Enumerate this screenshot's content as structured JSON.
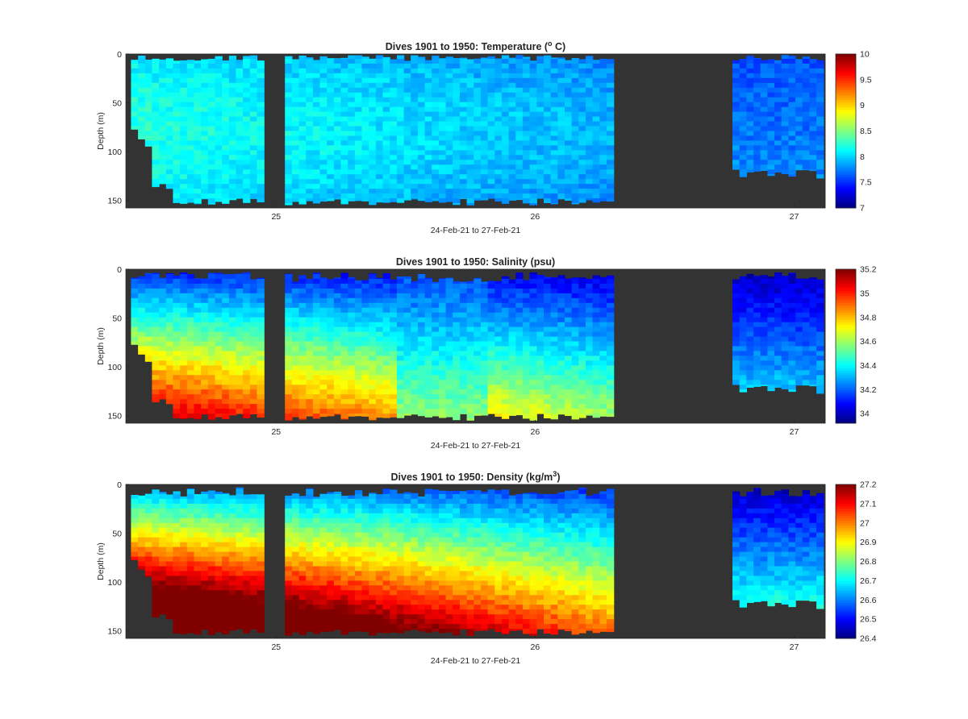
{
  "figure": {
    "background": "#ffffff",
    "no_data_color": "#333333",
    "colormap": "jet"
  },
  "chart_data": [
    {
      "type": "heatmap",
      "title": "Dives 1901 to 1950: Temperature (",
      "title_sup": "o",
      "title_tail": " C)",
      "xlabel": "24-Feb-21 to 27-Feb-21",
      "ylabel": "Depth (m)",
      "x_ticks": [
        25,
        26,
        27
      ],
      "x_ticklabels": [
        "25",
        "26",
        "27"
      ],
      "xlim": [
        24.42,
        27.12
      ],
      "ylim": [
        0,
        158
      ],
      "y_ticks": [
        0,
        50,
        100,
        150
      ],
      "y_ticklabels": [
        "0",
        "50",
        "100",
        "150"
      ],
      "y_reversed": true,
      "clim": [
        7,
        10
      ],
      "c_ticks": [
        7,
        7.5,
        8,
        8.5,
        9,
        9.5,
        10
      ],
      "c_ticklabels": [
        "7",
        "7.5",
        "8",
        "8.5",
        "9",
        "9.5",
        "10"
      ],
      "data_gaps": [
        [
          24.96,
          25.01
        ],
        [
          26.31,
          26.74
        ]
      ]
    },
    {
      "type": "heatmap",
      "title": "Dives 1901 to 1950: Salinity (psu)",
      "title_sup": "",
      "title_tail": "",
      "xlabel": "24-Feb-21 to 27-Feb-21",
      "ylabel": "Depth (m)",
      "x_ticks": [
        25,
        26,
        27
      ],
      "x_ticklabels": [
        "25",
        "26",
        "27"
      ],
      "xlim": [
        24.42,
        27.12
      ],
      "ylim": [
        0,
        158
      ],
      "y_ticks": [
        0,
        50,
        100,
        150
      ],
      "y_ticklabels": [
        "0",
        "50",
        "100",
        "150"
      ],
      "y_reversed": true,
      "clim": [
        33.92,
        35.2
      ],
      "c_ticks": [
        34,
        34.2,
        34.4,
        34.6,
        34.8,
        35,
        35.2
      ],
      "c_ticklabels": [
        "34",
        "34.2",
        "34.4",
        "34.6",
        "34.8",
        "35",
        "35.2"
      ],
      "data_gaps": [
        [
          24.96,
          25.01
        ],
        [
          26.31,
          26.74
        ]
      ]
    },
    {
      "type": "heatmap",
      "title": "Dives 1901 to 1950: Density (kg/m",
      "title_sup": "3",
      "title_tail": ")",
      "xlabel": "24-Feb-21 to 27-Feb-21",
      "ylabel": "Depth (m)",
      "x_ticks": [
        25,
        26,
        27
      ],
      "x_ticklabels": [
        "25",
        "26",
        "27"
      ],
      "xlim": [
        24.42,
        27.12
      ],
      "ylim": [
        0,
        158
      ],
      "y_ticks": [
        0,
        50,
        100,
        150
      ],
      "y_ticklabels": [
        "0",
        "50",
        "100",
        "150"
      ],
      "y_reversed": true,
      "clim": [
        26.4,
        27.2
      ],
      "c_ticks": [
        26.4,
        26.5,
        26.6,
        26.7,
        26.8,
        26.9,
        27,
        27.1,
        27.2
      ],
      "c_ticklabels": [
        "26.4",
        "26.5",
        "26.6",
        "26.7",
        "26.8",
        "26.9",
        "27",
        "27.1",
        "27.2"
      ],
      "data_gaps": [
        [
          24.96,
          25.01
        ],
        [
          26.31,
          26.74
        ]
      ]
    }
  ]
}
